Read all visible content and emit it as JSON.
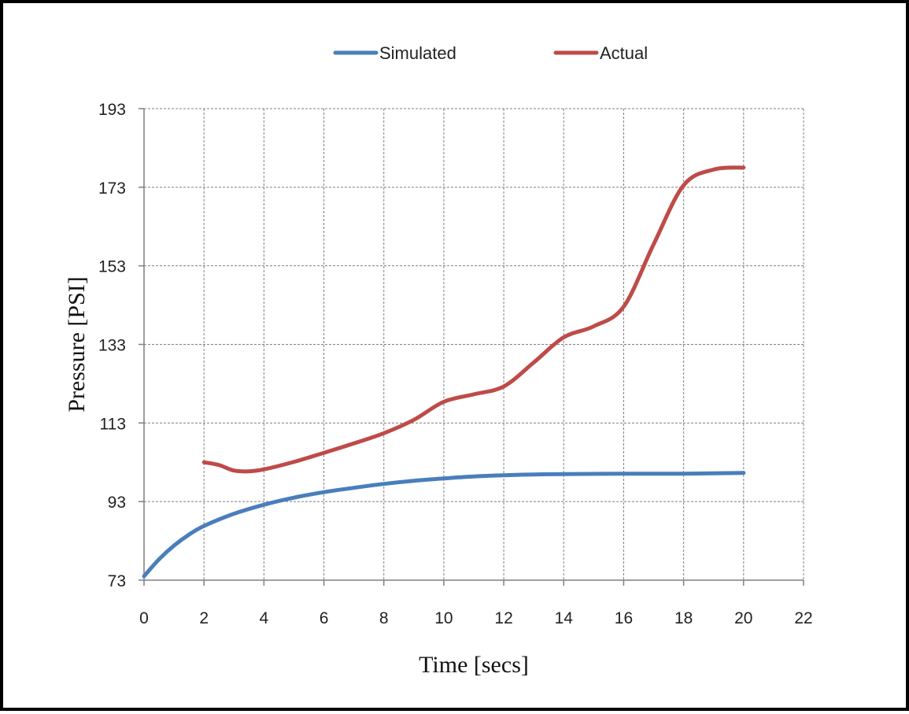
{
  "chart_data": {
    "type": "line",
    "title": "",
    "xlabel": "Time [secs]",
    "ylabel": "Pressure [PSI]",
    "xlim": [
      0,
      22
    ],
    "ylim": [
      73,
      193
    ],
    "xticks": [
      0,
      2,
      4,
      6,
      8,
      10,
      12,
      14,
      16,
      18,
      20,
      22
    ],
    "yticks": [
      73,
      93,
      113,
      133,
      153,
      173,
      193
    ],
    "grid": true,
    "legend_position": "top-center",
    "series": [
      {
        "name": "Simulated",
        "color": "#4a7ebb",
        "x": [
          0,
          0.5,
          1,
          1.5,
          2,
          3,
          4,
          5,
          6,
          7,
          8,
          9,
          10,
          11,
          12,
          13,
          14,
          16,
          18,
          20
        ],
        "y": [
          74,
          78.3,
          81.8,
          84.6,
          86.8,
          89.9,
          92.2,
          94.0,
          95.4,
          96.5,
          97.5,
          98.3,
          98.9,
          99.4,
          99.7,
          99.9,
          100.0,
          100.1,
          100.1,
          100.3
        ]
      },
      {
        "name": "Actual",
        "color": "#be4b48",
        "x": [
          2,
          2.5,
          3,
          3.5,
          4,
          5,
          6,
          7,
          8,
          9,
          10,
          11,
          12,
          13,
          14,
          15,
          16,
          17,
          18,
          19,
          20
        ],
        "y": [
          103,
          102.3,
          100.9,
          100.7,
          101.2,
          103.1,
          105.4,
          107.8,
          110.4,
          113.8,
          118.4,
          120.3,
          122.3,
          128.4,
          134.8,
          137.6,
          142.6,
          158.5,
          173.5,
          177.5,
          178
        ]
      }
    ]
  }
}
